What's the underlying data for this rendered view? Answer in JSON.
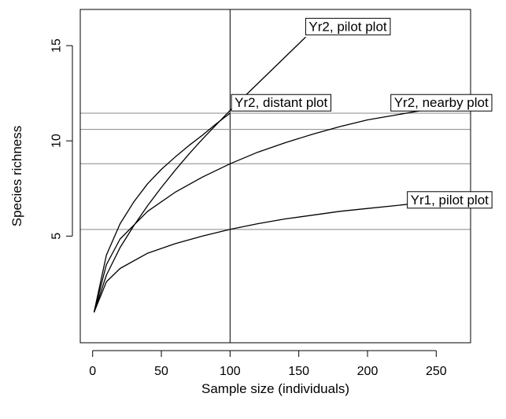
{
  "chart_data": {
    "type": "line",
    "title": "",
    "xlabel": "Sample size (individuals)",
    "ylabel": "Species richness",
    "xlim": [
      -9,
      275
    ],
    "ylim": [
      -0.6,
      16.9
    ],
    "x_ticks": [
      0,
      50,
      100,
      150,
      200,
      250
    ],
    "y_ticks": [
      5,
      10,
      15
    ],
    "grid": false,
    "reference_lines": {
      "vertical_x": 100,
      "horizontal_y": [
        5.35,
        8.8,
        10.6,
        11.45
      ]
    },
    "series": [
      {
        "name": "Yr2, pilot plot",
        "x": [
          1,
          10,
          20,
          30,
          40,
          50,
          60,
          70,
          80,
          90,
          100,
          110,
          120,
          130,
          140,
          150,
          155
        ],
        "y": [
          1.0,
          2.95,
          4.4,
          5.55,
          6.6,
          7.55,
          8.45,
          9.3,
          10.1,
          10.85,
          11.6,
          12.3,
          13.0,
          13.7,
          14.4,
          15.1,
          15.45
        ]
      },
      {
        "name": "Yr2, distant plot",
        "x": [
          1,
          10,
          20,
          30,
          40,
          50,
          60,
          70,
          80,
          90,
          100
        ],
        "y": [
          1.0,
          4.0,
          5.65,
          6.8,
          7.75,
          8.5,
          9.15,
          9.75,
          10.3,
          10.9,
          11.45
        ]
      },
      {
        "name": "Yr2, nearby plot",
        "x": [
          1,
          10,
          20,
          40,
          60,
          80,
          100,
          120,
          140,
          160,
          180,
          200,
          220,
          240,
          255
        ],
        "y": [
          1.0,
          3.5,
          4.85,
          6.3,
          7.3,
          8.1,
          8.8,
          9.4,
          9.9,
          10.35,
          10.75,
          11.1,
          11.35,
          11.6,
          11.75
        ]
      },
      {
        "name": "Yr1, pilot plot",
        "x": [
          1,
          10,
          20,
          40,
          60,
          80,
          100,
          120,
          140,
          160,
          180,
          200,
          220,
          240,
          255
        ],
        "y": [
          1.0,
          2.6,
          3.3,
          4.1,
          4.6,
          5.0,
          5.35,
          5.65,
          5.9,
          6.1,
          6.3,
          6.45,
          6.6,
          6.75,
          6.85
        ]
      }
    ],
    "annotations": [
      {
        "text": "Yr2, pilot plot",
        "x": 155,
        "y": 16.0
      },
      {
        "text": "Yr2, distant plot",
        "x": 101,
        "y": 12.0
      },
      {
        "text": "Yr2, nearby plot",
        "x": 217,
        "y": 12.0
      },
      {
        "text": "Yr1, pilot plot",
        "x": 229,
        "y": 6.9
      }
    ]
  }
}
